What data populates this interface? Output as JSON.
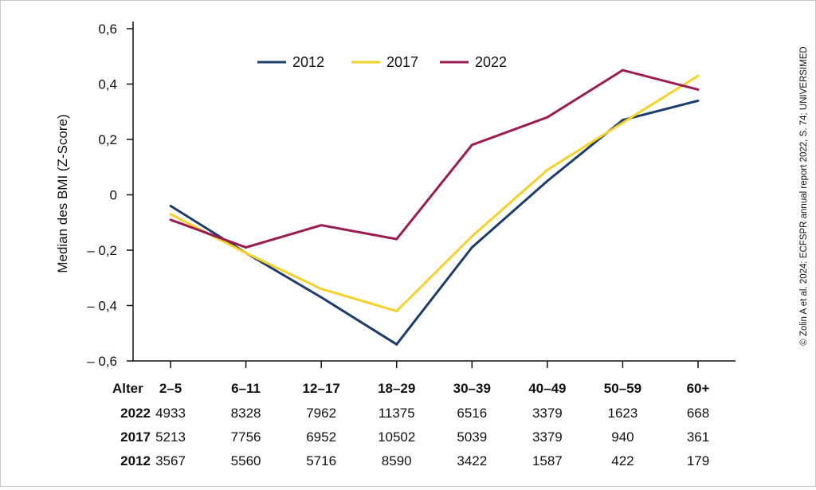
{
  "chart_data": {
    "type": "line",
    "ylabel": "Median des BMI (Z-Score)",
    "ylim": [
      -0.6,
      0.6
    ],
    "y_ticks": [
      0.6,
      0.4,
      0.2,
      0,
      -0.2,
      -0.4,
      -0.6
    ],
    "y_tick_labels": [
      "0,6",
      "0,4",
      "0,2",
      "0",
      "– 0,2",
      "– 0,4",
      "– 0,6"
    ],
    "categories": [
      "2–5",
      "6–11",
      "12–17",
      "18–29",
      "30–39",
      "40–49",
      "50–59",
      "60+"
    ],
    "series": [
      {
        "name": "2012",
        "color": "#1c3d6b",
        "values": [
          -0.04,
          -0.21,
          -0.37,
          -0.54,
          -0.19,
          0.05,
          0.27,
          0.34
        ]
      },
      {
        "name": "2017",
        "color": "#f7d02a",
        "values": [
          -0.07,
          -0.21,
          -0.34,
          -0.42,
          -0.15,
          0.09,
          0.26,
          0.43
        ]
      },
      {
        "name": "2022",
        "color": "#9b1b52",
        "values": [
          -0.09,
          -0.19,
          -0.11,
          -0.16,
          0.18,
          0.28,
          0.45,
          0.38
        ]
      }
    ],
    "legend_position": "top"
  },
  "table": {
    "header_label": "Alter",
    "rows": [
      {
        "label": "2022",
        "values": [
          "4933",
          "8328",
          "7962",
          "11375",
          "6516",
          "3379",
          "1623",
          "668"
        ]
      },
      {
        "label": "2017",
        "values": [
          "5213",
          "7756",
          "6952",
          "10502",
          "5039",
          "3379",
          "940",
          "361"
        ]
      },
      {
        "label": "2012",
        "values": [
          "3567",
          "5560",
          "5716",
          "8590",
          "3422",
          "1587",
          "422",
          "179"
        ]
      }
    ]
  },
  "credit": "© Zolin A et al. 2024: ECFSPR annual report 2022, S. 74; UNIVERSIMED"
}
